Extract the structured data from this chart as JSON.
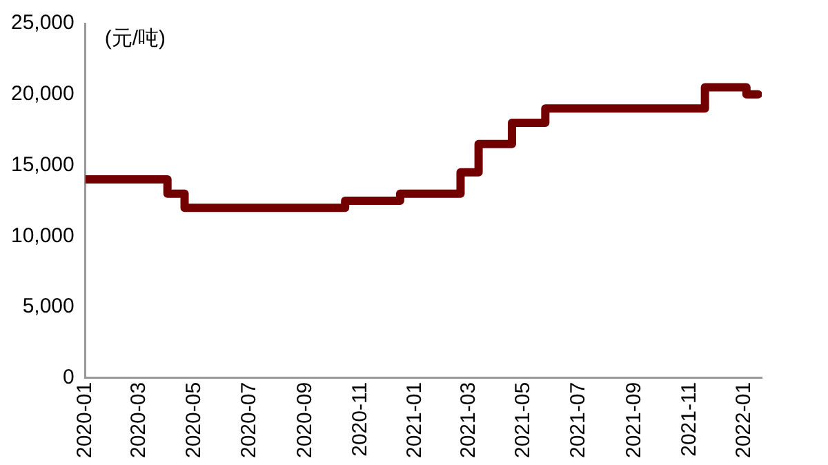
{
  "chart_data": {
    "type": "step",
    "ylabel": "(元/吨)",
    "x": [
      "2020-01-01",
      "2020-04-01",
      "2020-04-20",
      "2020-10-15",
      "2020-12-15",
      "2021-02-20",
      "2021-03-12",
      "2021-04-18",
      "2021-05-25",
      "2021-11-18",
      "2022-01-03",
      "2022-01-16"
    ],
    "series": [
      {
        "color": "#720000",
        "values": [
          14000,
          13000,
          12000,
          12500,
          13000,
          14500,
          16500,
          18000,
          19000,
          20500,
          20000,
          20000
        ]
      }
    ],
    "xlim": [
      "2020-01-01",
      "2022-01-20"
    ],
    "xticks": [
      "2020-01",
      "2020-03",
      "2020-05",
      "2020-07",
      "2020-09",
      "2020-11",
      "2021-01",
      "2021-03",
      "2021-05",
      "2021-07",
      "2021-09",
      "2021-11",
      "2022-01"
    ],
    "ylim": [
      0,
      25000
    ],
    "yticks": [
      0,
      {
        "value": 5000,
        "label": "5,000"
      },
      {
        "value": 10000,
        "label": "10,000"
      },
      {
        "value": 15000,
        "label": "15,000"
      },
      {
        "value": 20000,
        "label": "20,000"
      },
      {
        "value": 25000,
        "label": "25,000"
      }
    ],
    "grid": false,
    "legend": false
  }
}
